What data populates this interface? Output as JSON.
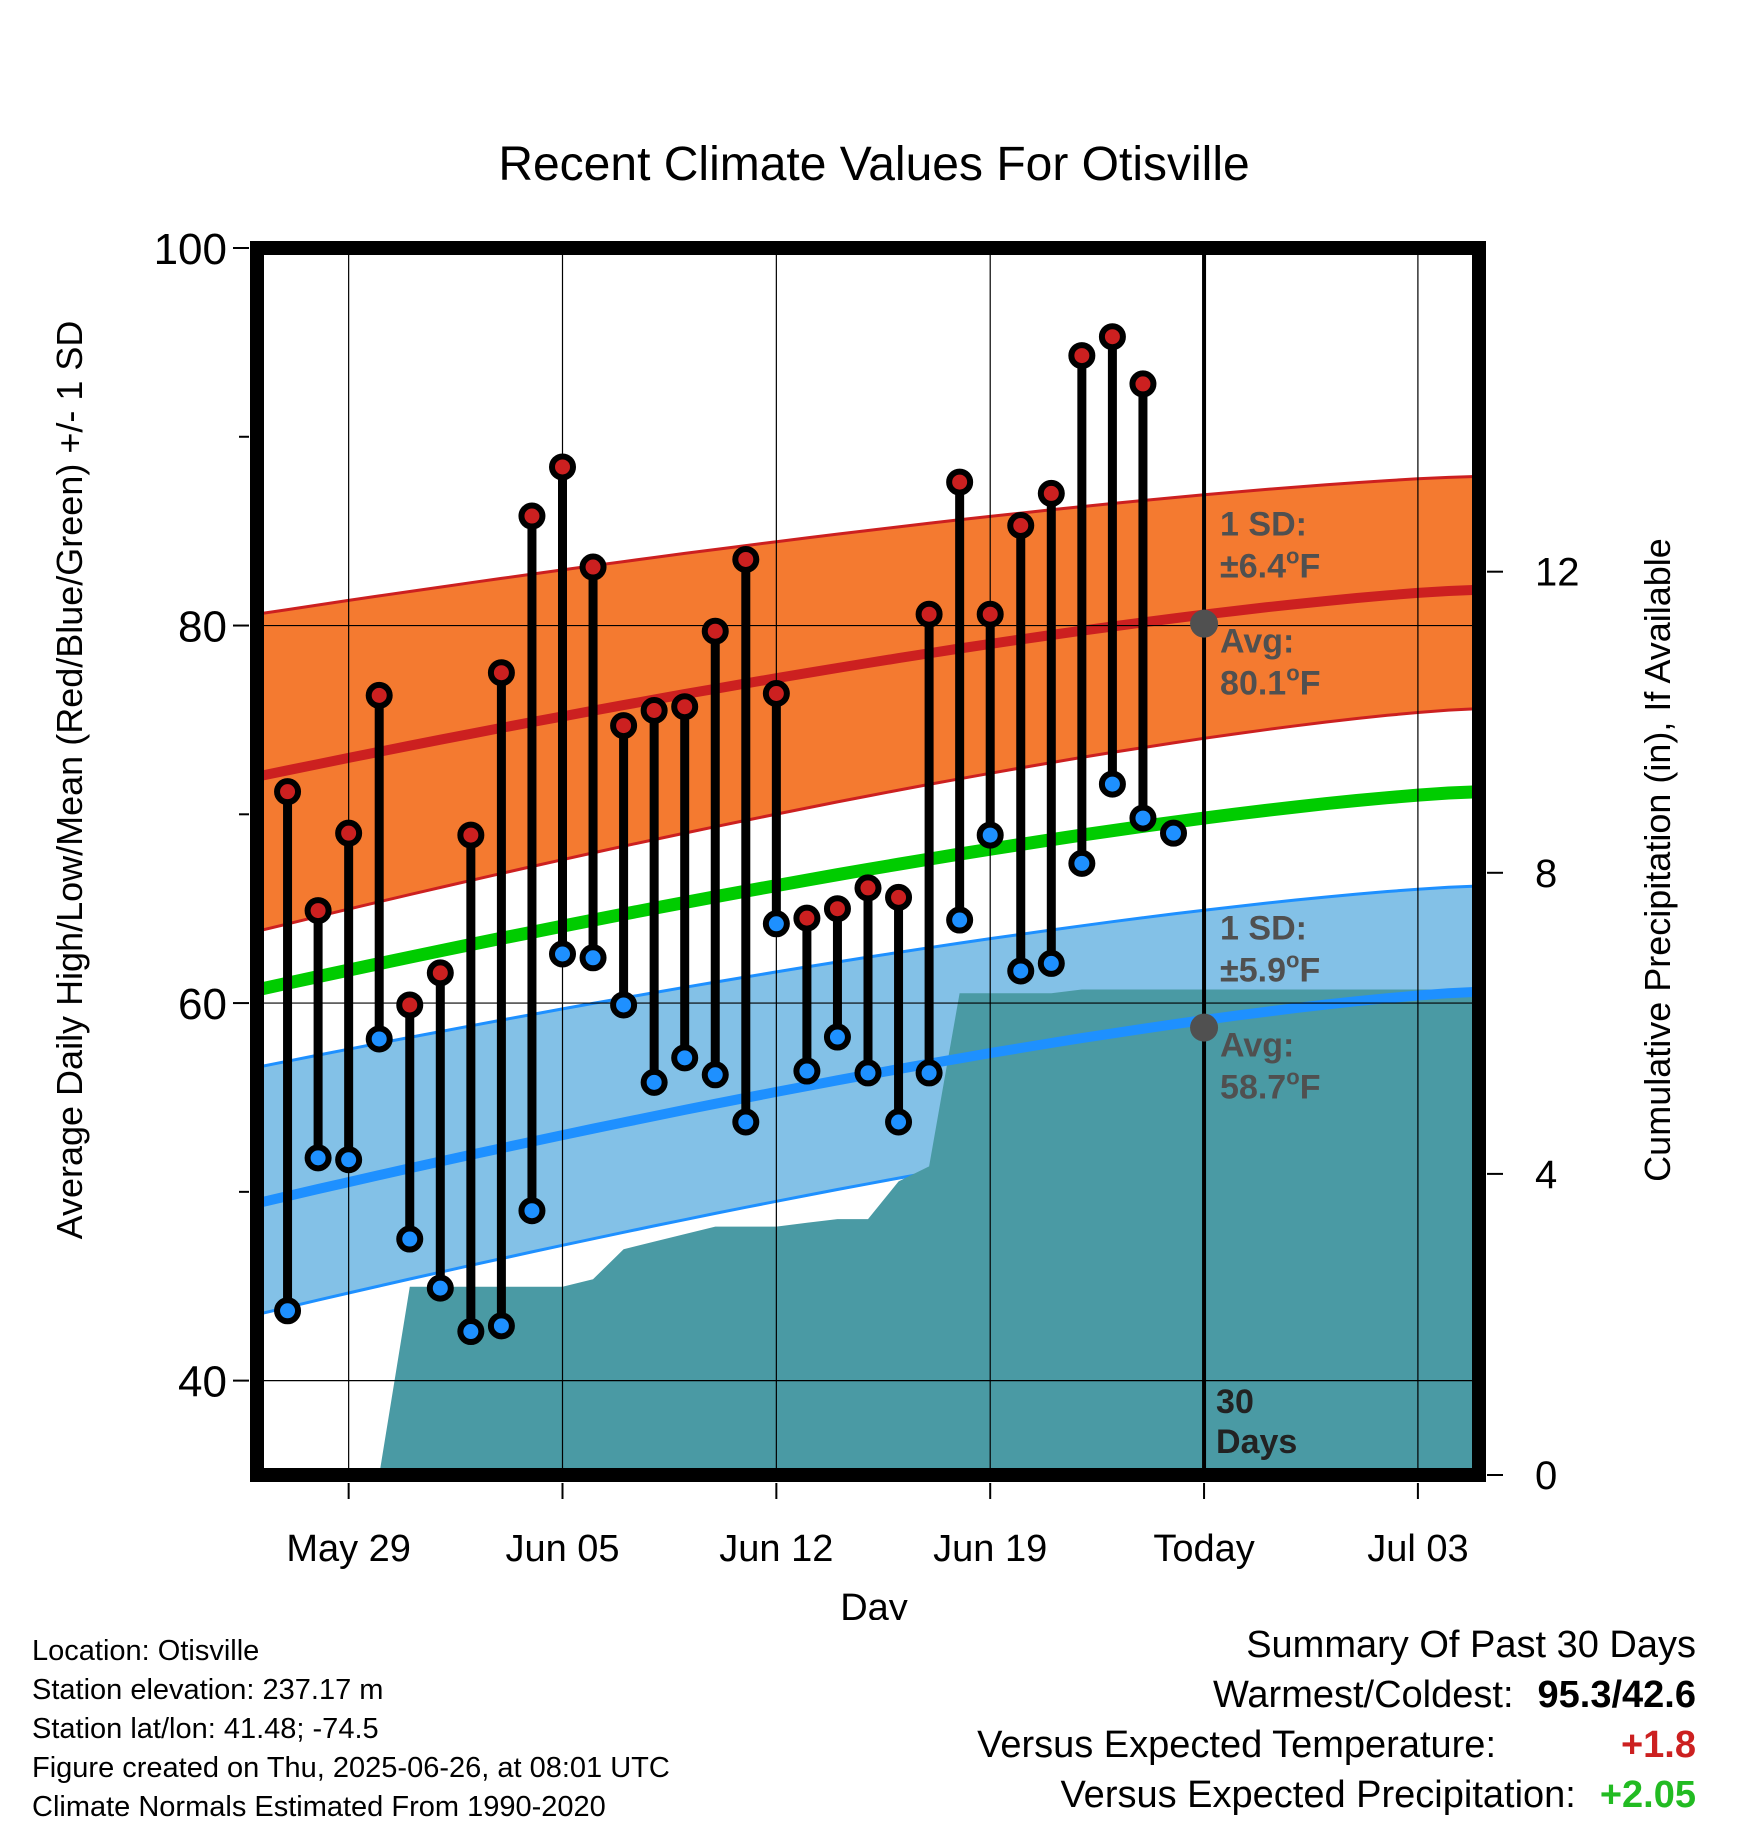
{
  "chart_data": {
    "type": "line",
    "title": "Recent Climate Values For Otisville",
    "xlabel": "Day",
    "ylabel": "Average Daily High/Low/Mean (Red/Blue/Green) +/- 1 SD",
    "y2label": "Cumulative Precipitation (in), If Available",
    "ylim": [
      35,
      100
    ],
    "y2lim": [
      0,
      16.3
    ],
    "y_ticks": [
      "40",
      "60",
      "80",
      "100"
    ],
    "y2_ticks": [
      "0",
      "4",
      "8",
      "12"
    ],
    "x_range_days": [
      "May 26",
      "Jul 05"
    ],
    "x_ticks": [
      {
        "label": "May 29",
        "date": "May 29"
      },
      {
        "label": "Jun 05",
        "date": "Jun 05"
      },
      {
        "label": "Jun 12",
        "date": "Jun 12"
      },
      {
        "label": "Jun 19",
        "date": "Jun 19"
      },
      {
        "label": "Today",
        "date": "Jun 26"
      },
      {
        "label": "Jul 03",
        "date": "Jul 03"
      }
    ],
    "grid": true,
    "today": "Jun 26",
    "period_label": [
      "30",
      "Days"
    ],
    "observed": {
      "dates": [
        "May 27",
        "May 28",
        "May 29",
        "May 30",
        "May 31",
        "Jun 01",
        "Jun 02",
        "Jun 03",
        "Jun 04",
        "Jun 05",
        "Jun 06",
        "Jun 07",
        "Jun 08",
        "Jun 09",
        "Jun 10",
        "Jun 11",
        "Jun 12",
        "Jun 13",
        "Jun 14",
        "Jun 15",
        "Jun 16",
        "Jun 17",
        "Jun 18",
        "Jun 19",
        "Jun 20",
        "Jun 21",
        "Jun 22",
        "Jun 23",
        "Jun 24",
        "Jun 25"
      ],
      "highs": [
        71.2,
        64.9,
        69.0,
        76.3,
        59.9,
        61.6,
        68.9,
        77.5,
        85.8,
        88.4,
        83.1,
        74.7,
        75.5,
        75.7,
        79.7,
        83.5,
        76.4,
        64.5,
        65.0,
        66.1,
        65.6,
        80.6,
        87.6,
        80.6,
        85.3,
        87.0,
        94.3,
        95.3,
        92.8,
        null
      ],
      "lows": [
        43.7,
        51.8,
        51.7,
        58.1,
        47.5,
        44.9,
        42.6,
        42.9,
        49.0,
        62.6,
        62.4,
        59.9,
        55.8,
        57.1,
        56.2,
        53.7,
        64.2,
        56.4,
        58.2,
        56.3,
        53.7,
        56.3,
        64.4,
        68.9,
        61.7,
        62.1,
        67.4,
        71.6,
        69.8,
        69.0
      ],
      "high_color": "#cc2020",
      "low_color": "#1e90ff"
    },
    "normals": {
      "dates": [
        "May 26",
        "Jul 05"
      ],
      "high_avg": [
        72.0,
        81.9
      ],
      "high_sd_upper": [
        80.6,
        87.9
      ],
      "high_sd_lower": [
        63.8,
        75.6
      ],
      "low_avg": [
        49.4,
        60.6
      ],
      "low_sd_upper": [
        56.6,
        66.2
      ],
      "low_sd_lower": [
        43.5,
        54.9
      ],
      "mean": [
        60.7,
        71.2
      ],
      "high_color": "#cc2020",
      "high_band_color": "#f47a30",
      "low_color": "#1e90ff",
      "low_band_color": "#83c1e7",
      "mean_color": "#00cc00"
    },
    "normal_labels": {
      "high": {
        "sd_label": "1 SD:",
        "sd_value": "±6.4",
        "avg_label": "Avg:",
        "avg_value": "80.1",
        "unit": "F"
      },
      "low": {
        "sd_label": "1 SD:",
        "sd_value": "±5.9",
        "avg_label": "Avg:",
        "avg_value": "58.7",
        "unit": "F"
      }
    },
    "today_high_avg": 80.1,
    "today_low_avg": 58.7,
    "precipitation": {
      "color": "#4a9aa4",
      "dates": [
        "May 26",
        "May 27",
        "May 28",
        "May 29",
        "May 30",
        "May 31",
        "Jun 01",
        "Jun 02",
        "Jun 03",
        "Jun 04",
        "Jun 05",
        "Jun 06",
        "Jun 07",
        "Jun 08",
        "Jun 09",
        "Jun 10",
        "Jun 11",
        "Jun 12",
        "Jun 13",
        "Jun 14",
        "Jun 15",
        "Jun 16",
        "Jun 17",
        "Jun 18",
        "Jun 19",
        "Jun 20",
        "Jun 21",
        "Jun 22",
        "Jun 23",
        "Jun 24",
        "Jun 25",
        "Jun 26",
        "Jul 05"
      ],
      "values": [
        null,
        null,
        null,
        null,
        0,
        2.5,
        2.5,
        2.5,
        2.5,
        2.5,
        2.5,
        2.6,
        3.0,
        3.1,
        3.2,
        3.3,
        3.3,
        3.3,
        3.35,
        3.4,
        3.4,
        3.9,
        4.1,
        6.4,
        6.4,
        6.4,
        6.4,
        6.45,
        6.45,
        6.45,
        6.45,
        6.45,
        6.45
      ]
    }
  },
  "info": {
    "location": "Location: Otisville",
    "elevation": "Station elevation: 237.17 m",
    "latlon": "Station lat/lon: 41.48; -74.5",
    "created": "Figure created on Thu, 2025-06-26, at 08:01 UTC",
    "normals": "Climate Normals Estimated From 1990-2020"
  },
  "summary": {
    "title": "Summary Of Past 30 Days",
    "warm_cold_label": "Warmest/Coldest:",
    "warm_cold_value": "95.3/42.6",
    "temp_label": "Versus Expected Temperature:",
    "temp_value": "+1.8",
    "temp_color": "#cc2020",
    "precip_label": "Versus Expected Precipitation:",
    "precip_value": "+2.05",
    "precip_color": "#22bb22"
  }
}
